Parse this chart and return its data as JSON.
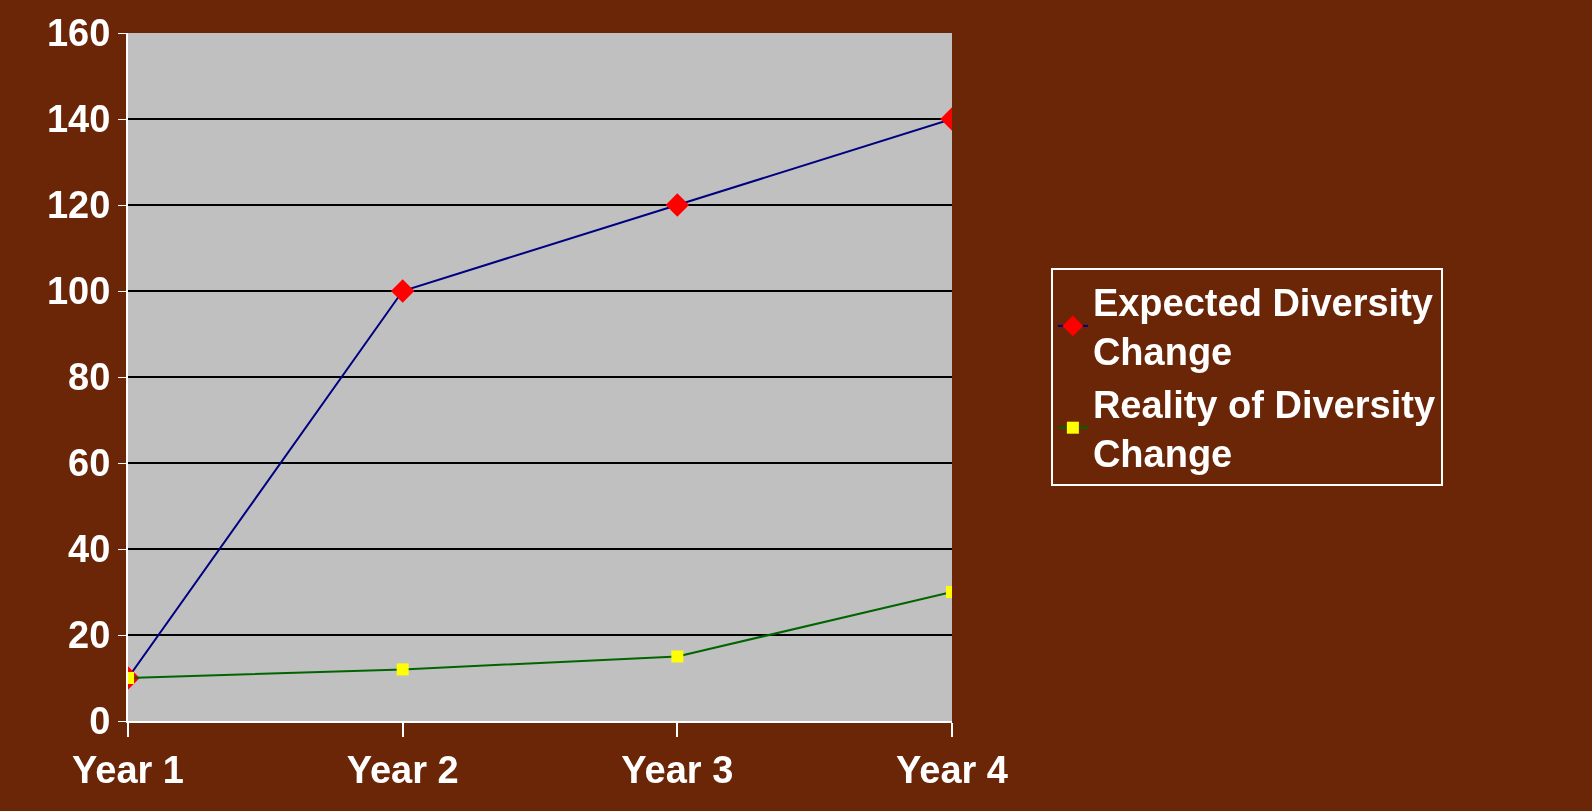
{
  "chart_data": {
    "type": "line",
    "categories": [
      "Year 1",
      "Year 2",
      "Year 3",
      "Year 4"
    ],
    "series": [
      {
        "name": "Expected Diversity Change",
        "color": "#000080",
        "colors": [
          "#ff0000",
          "#ff0000",
          "#ff0000",
          "#ff0000"
        ],
        "marker": "diamond",
        "values": [
          10,
          100,
          120,
          140
        ]
      },
      {
        "name": "Reality of Diversity Change",
        "color": "#006400",
        "colors": [
          "#ffff00",
          "#ffff00",
          "#ffff00",
          "#ffff00"
        ],
        "marker": "square",
        "values": [
          10,
          12,
          15,
          30
        ]
      }
    ],
    "ylim": [
      0,
      160
    ],
    "yticks": [
      0,
      20,
      40,
      60,
      80,
      100,
      120,
      140,
      160
    ],
    "grid": "y",
    "legend": "right",
    "line_style": "solid"
  }
}
